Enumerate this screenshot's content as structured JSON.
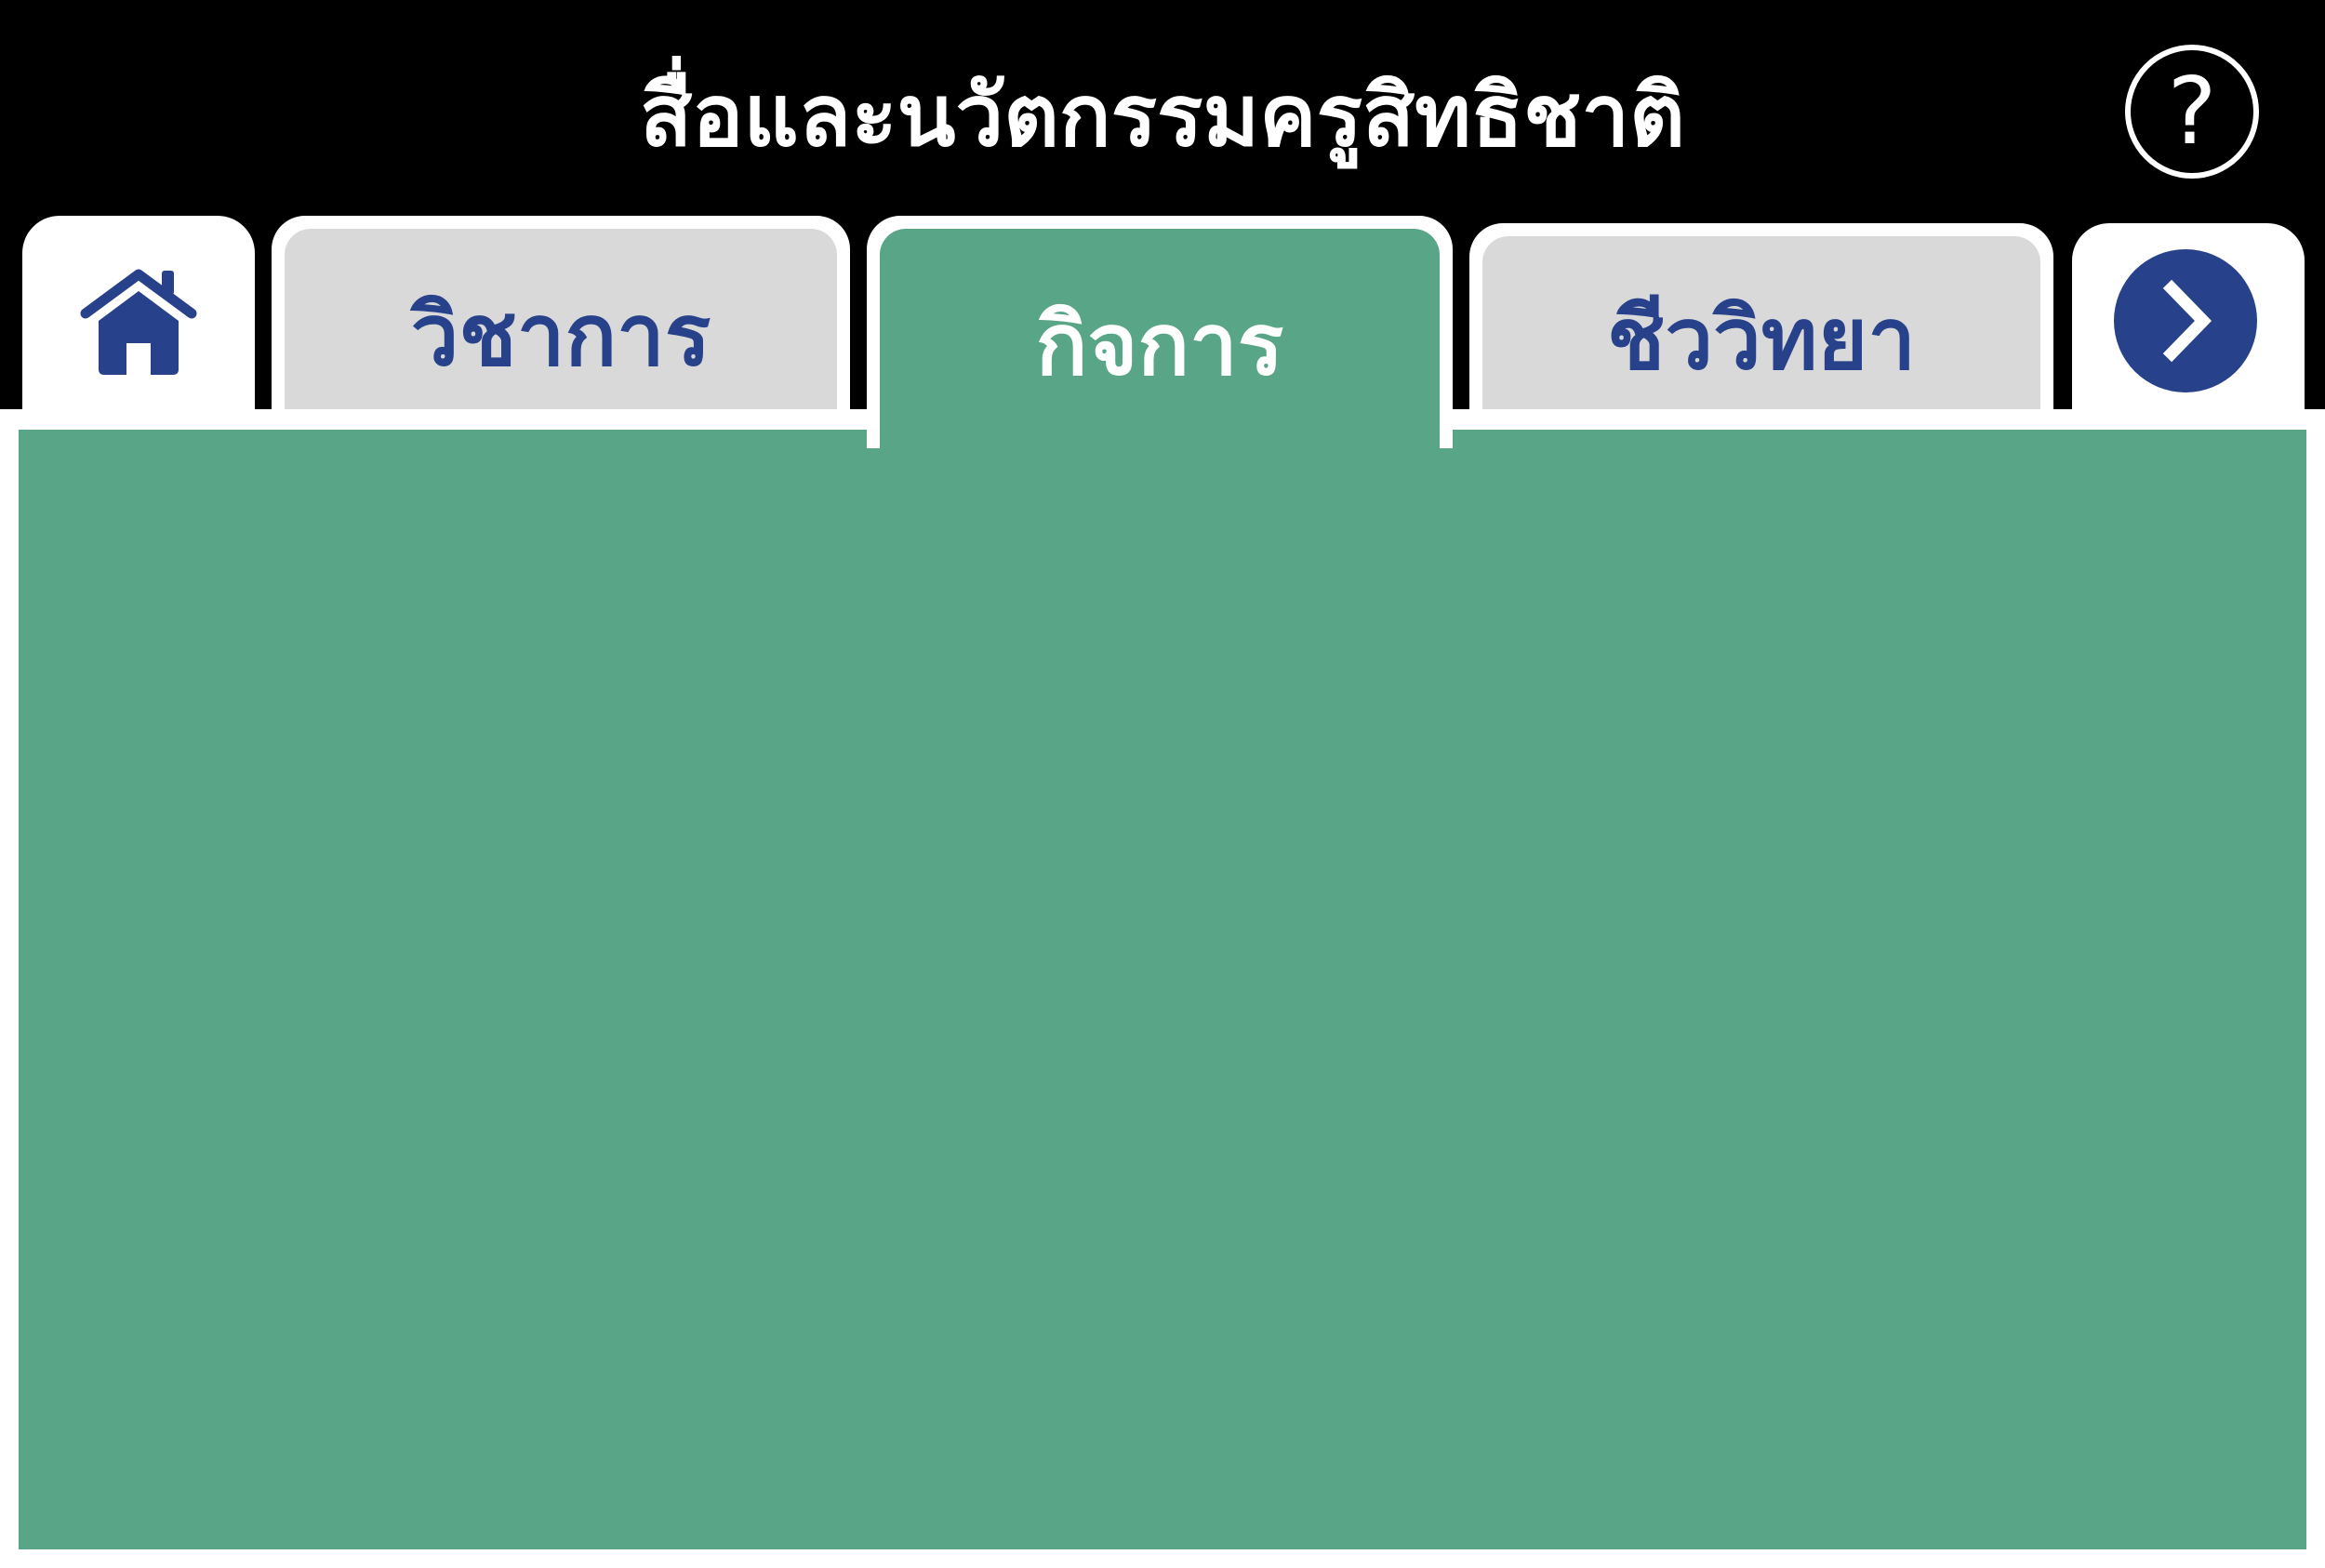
{
  "header": {
    "title": "สื่อและนวัตกรรมครูสิทธิชาติ",
    "help_label": "?"
  },
  "tabs": {
    "home": {
      "icon": "home-icon"
    },
    "items": [
      {
        "label": "วิชาการ",
        "active": false
      },
      {
        "label": "กิจการ",
        "active": true
      },
      {
        "label": "ชีววิทยา",
        "active": false
      }
    ],
    "next": {
      "icon": "chevron-right-icon"
    }
  },
  "colors": {
    "header_bg": "#000000",
    "active_tab": "#58a687",
    "inactive_tab": "#d9d9d9",
    "label_blue": "#27418a",
    "panel": "#58a687"
  }
}
